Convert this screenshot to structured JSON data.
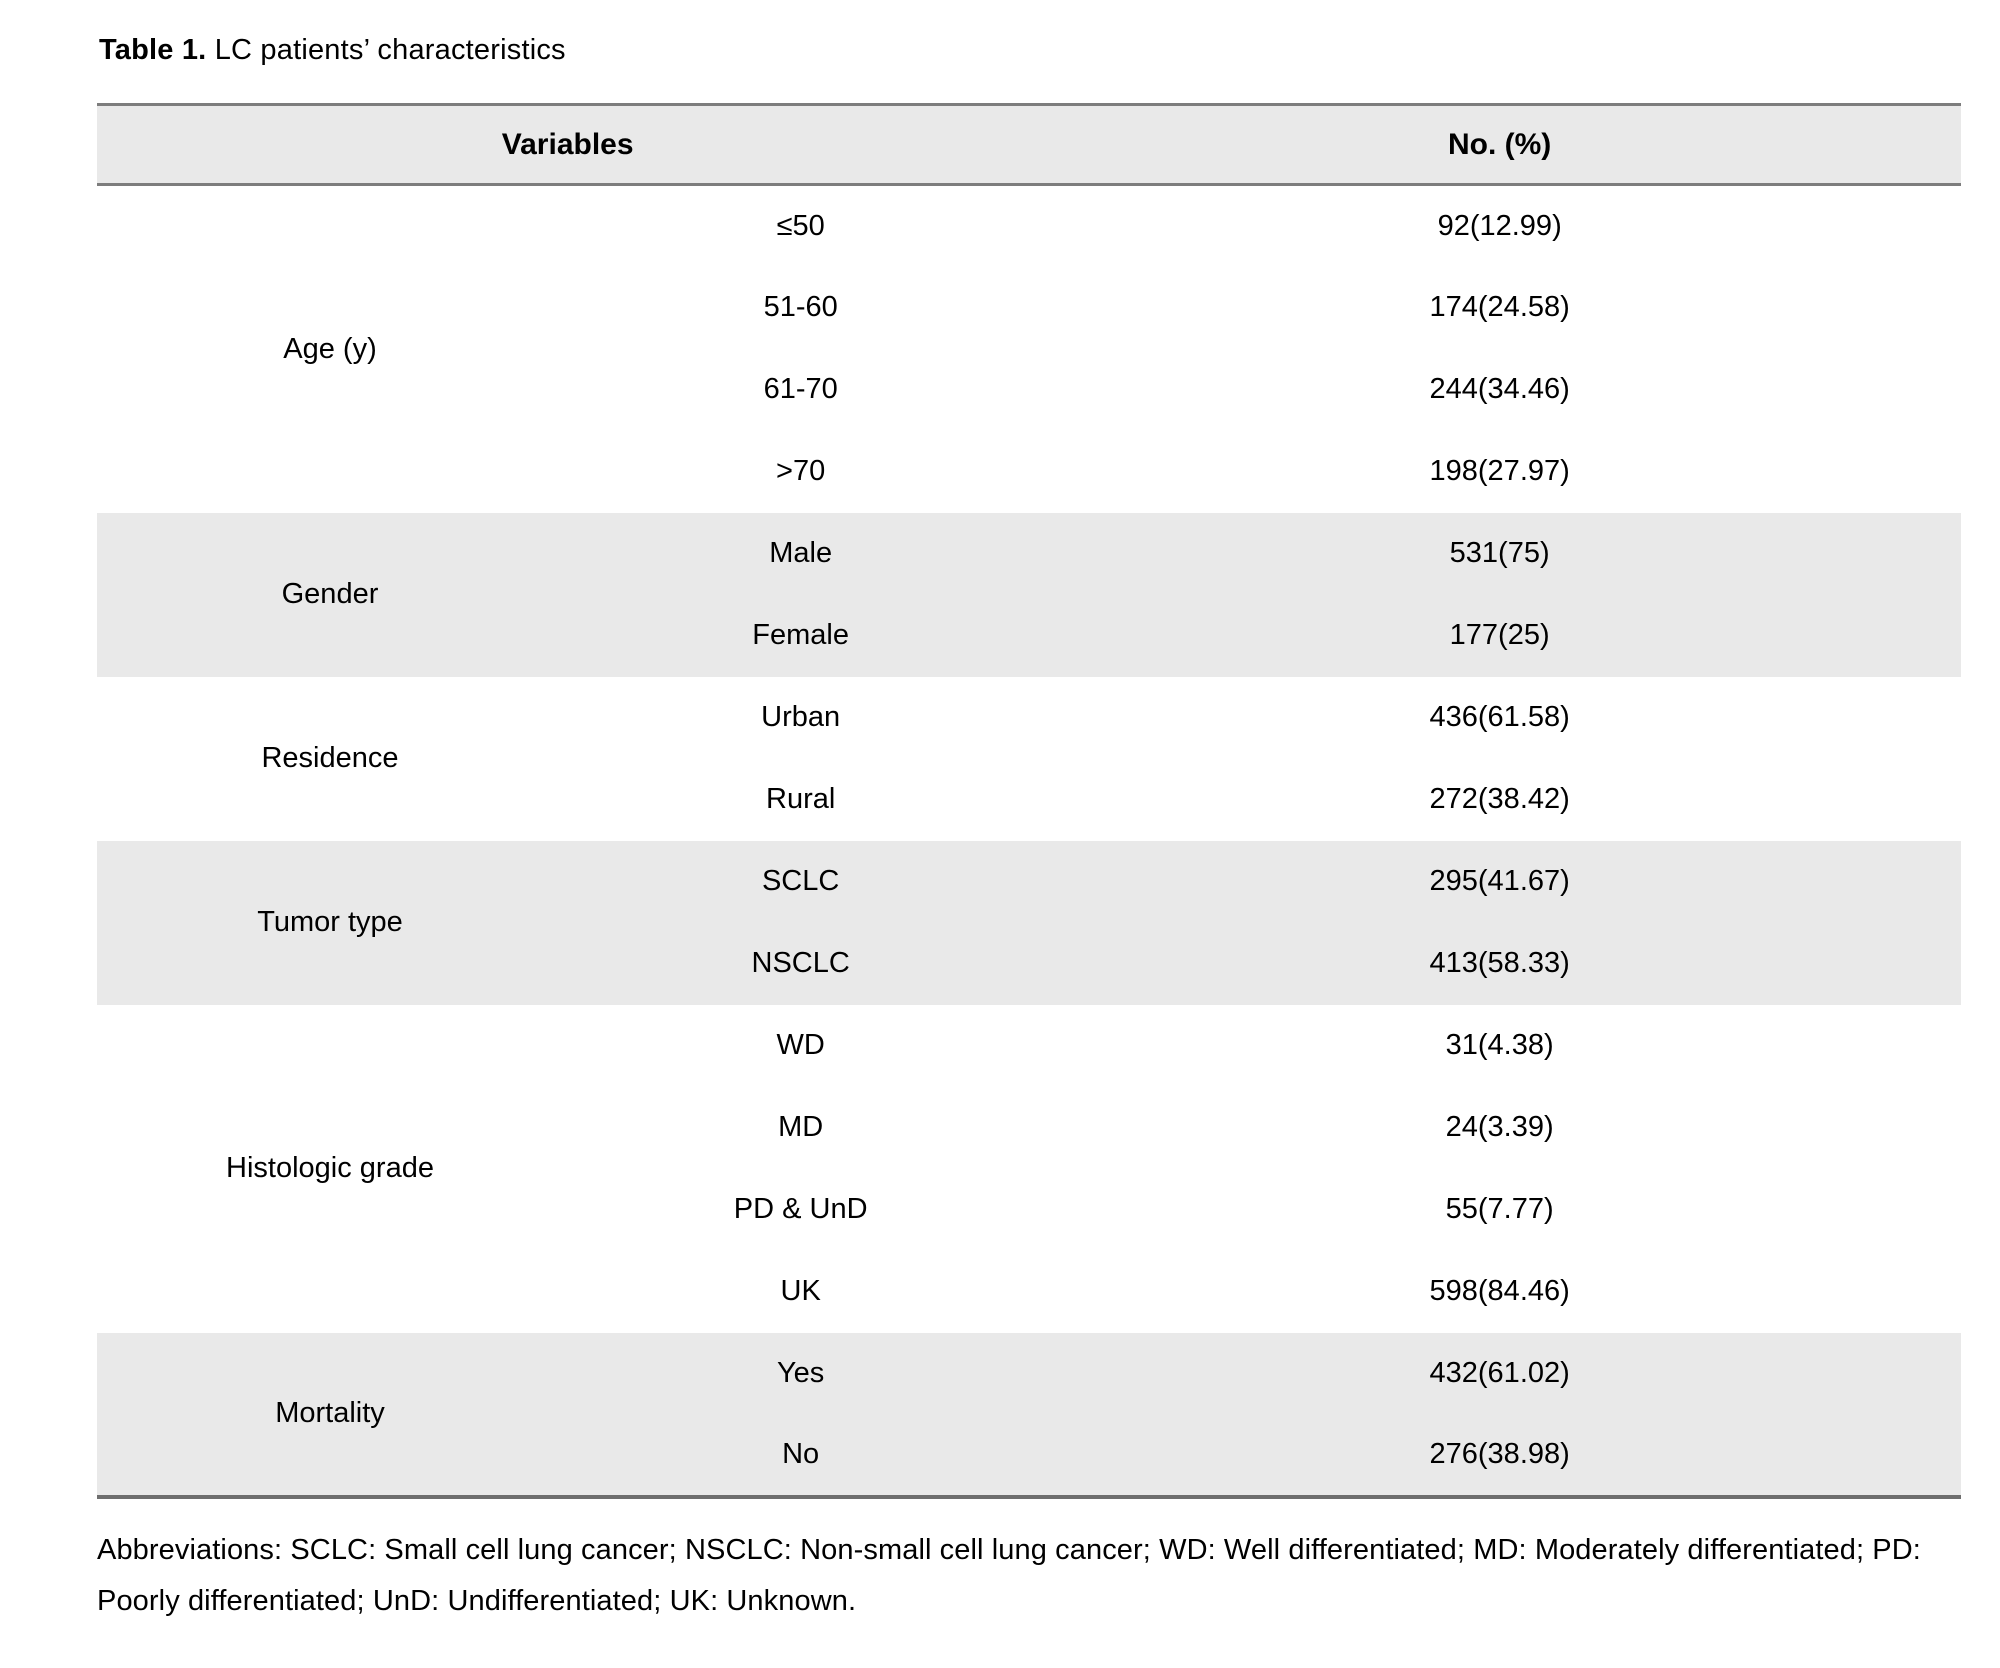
{
  "title": {
    "label": "Table 1.",
    "caption": " LC patients’ characteristics"
  },
  "table": {
    "headers": [
      "Variables",
      "No. (%)"
    ],
    "groups": [
      {
        "variable": "Age (y)",
        "shaded": false,
        "rows": [
          {
            "category": "≤50",
            "value": "92(12.99)"
          },
          {
            "category": "51-60",
            "value": "174(24.58)"
          },
          {
            "category": "61-70",
            "value": "244(34.46)"
          },
          {
            "category": ">70",
            "value": "198(27.97)"
          }
        ]
      },
      {
        "variable": "Gender",
        "shaded": true,
        "rows": [
          {
            "category": "Male",
            "value": "531(75)"
          },
          {
            "category": "Female",
            "value": "177(25)"
          }
        ]
      },
      {
        "variable": "Residence",
        "shaded": false,
        "rows": [
          {
            "category": "Urban",
            "value": "436(61.58)"
          },
          {
            "category": "Rural",
            "value": "272(38.42)"
          }
        ]
      },
      {
        "variable": "Tumor type",
        "shaded": true,
        "rows": [
          {
            "category": "SCLC",
            "value": "295(41.67)"
          },
          {
            "category": "NSCLC",
            "value": "413(58.33)"
          }
        ]
      },
      {
        "variable": "Histologic grade",
        "shaded": false,
        "rows": [
          {
            "category": "WD",
            "value": "31(4.38)"
          },
          {
            "category": "MD",
            "value": "24(3.39)"
          },
          {
            "category": "PD & UnD",
            "value": "55(7.77)"
          },
          {
            "category": "UK",
            "value": "598(84.46)"
          }
        ]
      },
      {
        "variable": "Mortality",
        "shaded": true,
        "rows": [
          {
            "category": "Yes",
            "value": "432(61.02)"
          },
          {
            "category": "No",
            "value": "276(38.98)"
          }
        ]
      }
    ]
  },
  "footnote": "Abbreviations: SCLC: Small cell lung cancer; NSCLC: Non-small cell lung cancer; WD: Well differentiated; MD: Moderately differentiated; PD: Poorly differentiated; UnD: Undifferentiated; UK: Unknown.",
  "colors": {
    "band": "#e9e9e9",
    "border": "#7d7d7d",
    "text": "#000000"
  }
}
